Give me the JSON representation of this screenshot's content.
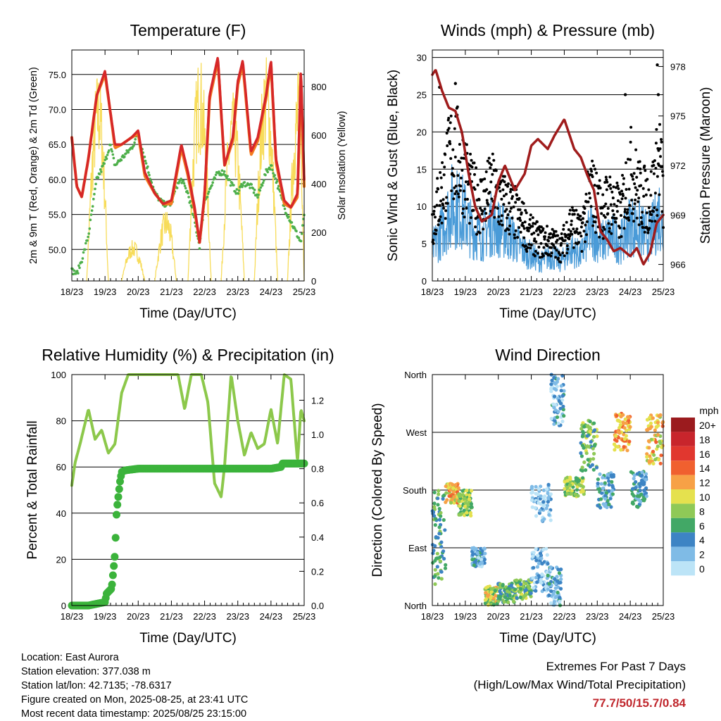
{
  "x_ticks": [
    "18/23",
    "19/23",
    "20/23",
    "21/23",
    "22/23",
    "23/23",
    "24/23",
    "25/23"
  ],
  "colors": {
    "red": "#d62728",
    "orange": "#f47b20",
    "green": "#4daf4a",
    "yellow": "#f7dc5a",
    "blue": "#4a9bd8",
    "black": "#000000",
    "maroon": "#a01c1c",
    "rh": "#8cc84b",
    "precip": "#3bb33b",
    "extremes": "#c0272d"
  },
  "chart_data": [
    {
      "type": "line",
      "title": "Temperature (F)",
      "xlabel": "Time (Day/UTC)",
      "ylabel": "2m & 9m T (Red, Orange) & 2m Td (Green)",
      "y2label": "Solar Insolation (Yellow)",
      "ylim": [
        45.5,
        78.5
      ],
      "y_ticks": [
        "50.0",
        "55.0",
        "60.0",
        "65.0",
        "70.0",
        "75.0"
      ],
      "y2lim": [
        0,
        950
      ],
      "y2_ticks": [
        "0",
        "200",
        "400",
        "600",
        "800"
      ],
      "x": [
        0,
        0.15,
        0.3,
        0.5,
        0.75,
        1.0,
        1.15,
        1.3,
        1.5,
        1.8,
        2.0,
        2.2,
        2.5,
        2.75,
        3.0,
        3.15,
        3.3,
        3.5,
        3.7,
        3.85,
        4.0,
        4.15,
        4.4,
        4.6,
        4.85,
        5.0,
        5.15,
        5.4,
        5.6,
        5.85,
        6.0,
        6.15,
        6.4,
        6.6,
        6.8,
        6.9,
        7.0
      ],
      "series": [
        {
          "values": [
            66,
            59,
            57.5,
            63,
            72,
            75.5,
            70,
            65,
            65,
            66,
            67,
            61,
            58,
            56.5,
            57,
            61,
            65,
            61,
            56,
            51,
            58,
            72,
            77.5,
            62,
            66,
            74,
            77,
            64,
            66,
            72,
            77,
            63,
            57,
            56,
            58,
            76,
            60
          ]
        },
        {
          "values": [
            66,
            59,
            57.5,
            63,
            72,
            75,
            70,
            64.5,
            65,
            66,
            66.5,
            60.5,
            58,
            56.5,
            56.5,
            60.5,
            64.5,
            60.5,
            55.5,
            51,
            57.5,
            71.5,
            77,
            62,
            65.5,
            73.5,
            76.5,
            63.5,
            65.5,
            71.5,
            76.5,
            62.5,
            56.5,
            56,
            57.5,
            75,
            59
          ]
        },
        {
          "values": [
            47,
            46.5,
            48.5,
            52,
            60,
            62.5,
            65,
            62,
            63,
            64.5,
            66.5,
            63,
            58,
            56.5,
            56.5,
            59,
            60,
            58,
            54,
            50.5,
            57,
            58.5,
            61,
            61,
            59,
            58,
            59.5,
            59,
            57.5,
            61,
            62,
            60,
            56,
            54,
            52,
            51,
            55
          ]
        }
      ],
      "insolation_days": [
        {
          "start": 0.45,
          "peak": 0.8,
          "end": 1.1,
          "max": 880
        },
        {
          "start": 1.5,
          "peak": 1.85,
          "end": 2.2,
          "max": 170
        },
        {
          "start": 2.5,
          "peak": 2.85,
          "end": 3.15,
          "max": 300
        },
        {
          "start": 3.5,
          "peak": 3.85,
          "end": 4.2,
          "max": 940
        },
        {
          "start": 4.5,
          "peak": 4.85,
          "end": 5.2,
          "max": 780
        },
        {
          "start": 5.5,
          "peak": 5.85,
          "end": 6.2,
          "max": 940
        },
        {
          "start": 6.5,
          "peak": 6.85,
          "end": 7.0,
          "max": 880
        }
      ]
    },
    {
      "type": "line",
      "title": "Winds (mph) & Pressure (mb)",
      "xlabel": "Time (Day/UTC)",
      "ylabel": "Sonic Wind & Gust (Blue, Black)",
      "y2label": "Station Pressure (Maroon)",
      "ylim": [
        0,
        31
      ],
      "y_ticks": [
        "0",
        "5",
        "10",
        "15",
        "20",
        "25",
        "30"
      ],
      "y2lim": [
        965,
        979
      ],
      "y2_ticks": [
        "966",
        "969",
        "972",
        "975",
        "978"
      ],
      "wind_x": [
        0,
        0.3,
        0.6,
        0.9,
        1.2,
        1.5,
        1.8,
        2.1,
        2.4,
        2.7,
        3.0,
        3.3,
        3.6,
        3.9,
        4.2,
        4.5,
        4.8,
        5.1,
        5.4,
        5.7,
        6.0,
        6.3,
        6.6,
        6.9,
        7.0
      ],
      "series": [
        {
          "name": "wind",
          "values": [
            5,
            8,
            12,
            11,
            8,
            7,
            9,
            8,
            7,
            5,
            4,
            3,
            4,
            3,
            5,
            4,
            8,
            6,
            7,
            6,
            9,
            8,
            7,
            11,
            7
          ]
        },
        {
          "name": "gust",
          "values": [
            9,
            14,
            20,
            18,
            13,
            12,
            14,
            12,
            11,
            9,
            7,
            6,
            6,
            5,
            9,
            7,
            14,
            11,
            12,
            10,
            17,
            13,
            12,
            19,
            12
          ]
        },
        {
          "name": "pressure",
          "x": [
            0,
            0.1,
            0.3,
            0.5,
            0.7,
            0.9,
            1.1,
            1.3,
            1.5,
            1.8,
            2.0,
            2.2,
            2.5,
            2.8,
            3.0,
            3.2,
            3.5,
            3.7,
            4.0,
            4.3,
            4.5,
            4.7,
            4.9,
            5.1,
            5.3,
            5.5,
            5.7,
            6.0,
            6.2,
            6.4,
            6.6,
            6.8,
            7.0
          ],
          "values": [
            977.5,
            977.8,
            976.5,
            975.5,
            975.3,
            974,
            971.5,
            969.5,
            968.6,
            969,
            971,
            972,
            970.5,
            971.5,
            973.2,
            973.6,
            973,
            973.8,
            974.8,
            973,
            972.5,
            971.4,
            970.5,
            968,
            967.5,
            966.8,
            967,
            966.5,
            967,
            966,
            966.7,
            968.5,
            969
          ]
        }
      ],
      "gust_extremes": [
        {
          "x": 0.22,
          "y": 26
        },
        {
          "x": 0.7,
          "y": 26.5
        },
        {
          "x": 6.82,
          "y": 29
        },
        {
          "x": 6.85,
          "y": 25
        },
        {
          "x": 5.85,
          "y": 25
        }
      ]
    },
    {
      "type": "line",
      "title": "Relative Humidity (%) & Precipitation (in)",
      "xlabel": "Time (Day/UTC)",
      "ylabel": "Percent & Total Rainfall",
      "ylim": [
        0,
        100
      ],
      "y_ticks": [
        "0",
        "20",
        "40",
        "60",
        "80",
        "100"
      ],
      "y2lim": [
        0,
        1.35
      ],
      "y2_ticks": [
        "0.0",
        "0.2",
        "0.4",
        "0.6",
        "0.8",
        "1.0",
        "1.2"
      ],
      "series": [
        {
          "name": "rh",
          "x": [
            0,
            0.1,
            0.25,
            0.5,
            0.7,
            0.9,
            1.1,
            1.3,
            1.5,
            1.7,
            2.0,
            2.3,
            2.6,
            2.9,
            3.2,
            3.4,
            3.6,
            3.9,
            4.1,
            4.3,
            4.5,
            4.6,
            4.8,
            5.0,
            5.2,
            5.4,
            5.6,
            5.8,
            6.0,
            6.2,
            6.4,
            6.6,
            6.8,
            6.9,
            7.0
          ],
          "values": [
            52,
            62,
            70,
            85,
            72,
            76,
            66,
            70,
            92,
            100,
            100,
            100,
            100,
            100,
            100,
            85,
            100,
            100,
            88,
            53,
            47,
            60,
            100,
            80,
            65,
            75,
            68,
            70,
            85,
            70,
            100,
            98,
            62,
            85,
            80
          ]
        },
        {
          "name": "precip",
          "x": [
            0,
            0.5,
            1.0,
            1.05,
            1.2,
            1.3,
            1.35,
            1.45,
            1.5,
            1.6,
            2.0,
            3.0,
            4.0,
            5.0,
            6.0,
            6.3,
            6.35,
            7.0
          ],
          "values": [
            0,
            0,
            0.02,
            0.07,
            0.1,
            0.3,
            0.55,
            0.72,
            0.78,
            0.79,
            0.8,
            0.8,
            0.8,
            0.8,
            0.8,
            0.81,
            0.83,
            0.83
          ]
        }
      ]
    },
    {
      "type": "scatter",
      "title": "Wind Direction",
      "xlabel": "Time (Day/UTC)",
      "ylabel": "Direction (Colored By Speed)",
      "ylim": [
        0,
        360
      ],
      "y_ticks": [
        "North",
        "East",
        "South",
        "West",
        "North"
      ],
      "legend_title": "mph",
      "legend_labels": [
        "20+",
        "18",
        "16",
        "14",
        "12",
        "10",
        "8",
        "6",
        "4",
        "2",
        "0"
      ],
      "legend_colors": [
        "#9b1b1e",
        "#c8252c",
        "#e1372f",
        "#f0602f",
        "#f7a146",
        "#e5e14e",
        "#8fc957",
        "#42a866",
        "#3d84c4",
        "#7fbbe6",
        "#bce4f7"
      ],
      "clusters": [
        {
          "x0": 0,
          "x1": 0.4,
          "d0": 30,
          "d1": 180,
          "s": 6
        },
        {
          "x0": 0.4,
          "x1": 0.8,
          "d0": 160,
          "d1": 190,
          "s": 11
        },
        {
          "x0": 0.8,
          "x1": 1.2,
          "d0": 140,
          "d1": 180,
          "s": 8
        },
        {
          "x0": 1.2,
          "x1": 1.6,
          "d0": 60,
          "d1": 90,
          "s": 3
        },
        {
          "x0": 1.6,
          "x1": 2.0,
          "d0": 0,
          "d1": 30,
          "s": 9
        },
        {
          "x0": 2.0,
          "x1": 2.5,
          "d0": 5,
          "d1": 35,
          "s": 6
        },
        {
          "x0": 2.5,
          "x1": 3.0,
          "d0": 10,
          "d1": 40,
          "s": 7
        },
        {
          "x0": 3.0,
          "x1": 3.5,
          "d0": 20,
          "d1": 90,
          "s": 2
        },
        {
          "x0": 3.5,
          "x1": 3.9,
          "d0": 0,
          "d1": 60,
          "s": 3
        },
        {
          "x0": 3.6,
          "x1": 4.0,
          "d0": 280,
          "d1": 360,
          "s": 3
        },
        {
          "x0": 3.0,
          "x1": 3.6,
          "d0": 130,
          "d1": 190,
          "s": 1
        },
        {
          "x0": 4.0,
          "x1": 4.6,
          "d0": 170,
          "d1": 200,
          "s": 8
        },
        {
          "x0": 4.5,
          "x1": 5.0,
          "d0": 210,
          "d1": 290,
          "s": 7
        },
        {
          "x0": 5.0,
          "x1": 5.5,
          "d0": 150,
          "d1": 210,
          "s": 4
        },
        {
          "x0": 5.5,
          "x1": 6.0,
          "d0": 240,
          "d1": 300,
          "s": 12
        },
        {
          "x0": 6.0,
          "x1": 6.5,
          "d0": 150,
          "d1": 210,
          "s": 4
        },
        {
          "x0": 6.5,
          "x1": 7.0,
          "d0": 220,
          "d1": 300,
          "s": 11
        }
      ]
    }
  ],
  "info": {
    "location": "Location: East Aurora",
    "elevation": "Station elevation: 377.038 m",
    "latlon": "Station lat/lon: 42.7135; -78.6317",
    "created": "Figure created on Mon, 2025-08-25, at 23:41 UTC",
    "recent": "Most recent data timestamp: 2025/08/25 23:15:00"
  },
  "extremes": {
    "title": "Extremes For Past 7 Days",
    "subtitle": "(High/Low/Max Wind/Total Precipitation)",
    "values": "77.7/50/15.7/0.84"
  }
}
